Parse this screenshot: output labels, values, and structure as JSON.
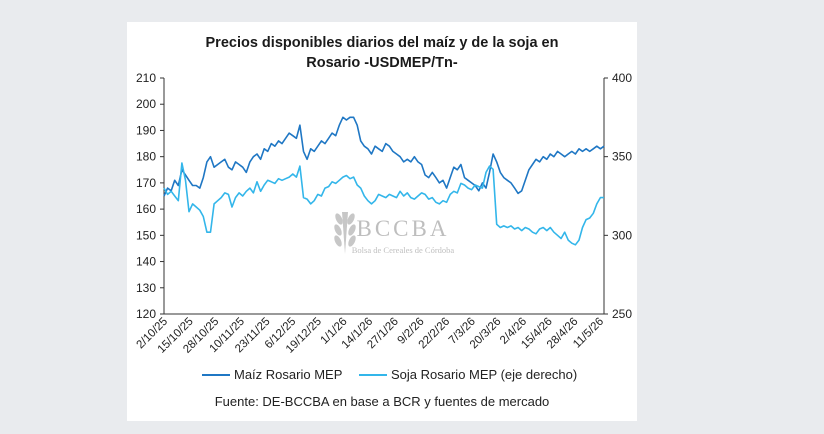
{
  "chart_data": {
    "type": "line",
    "title_line1": "Precios disponibles diarios del maíz y de la soja en",
    "title_line2": "Rosario -USDMEP/Tn-",
    "x_tick_labels": [
      "2/10/25",
      "15/10/25",
      "28/10/25",
      "10/11/25",
      "23/11/25",
      "6/12/25",
      "19/12/25",
      "1/1/26",
      "14/1/26",
      "27/1/26",
      "9/2/26",
      "22/2/26",
      "7/3/26",
      "20/3/26",
      "2/4/26",
      "15/4/26",
      "28/4/26",
      "11/5/26"
    ],
    "y_left": {
      "ylim": [
        120,
        210
      ],
      "ticks": [
        120,
        130,
        140,
        150,
        160,
        170,
        180,
        190,
        200,
        210
      ]
    },
    "y_right": {
      "ylim": [
        250,
        400
      ],
      "ticks": [
        250,
        300,
        350,
        400
      ]
    },
    "watermark": {
      "brand": "BCCBA",
      "subtitle": "Bolsa de Cereales de Córdoba"
    },
    "series": [
      {
        "name": "Maíz Rosario MEP",
        "axis": "left",
        "color": "#1f77c4",
        "points": [
          [
            0,
            165
          ],
          [
            1,
            168
          ],
          [
            2,
            167
          ],
          [
            3,
            171
          ],
          [
            4,
            169
          ],
          [
            5,
            175
          ],
          [
            6,
            173
          ],
          [
            7,
            171
          ],
          [
            8,
            169
          ],
          [
            9,
            169
          ],
          [
            10,
            168
          ],
          [
            11,
            172
          ],
          [
            12,
            178
          ],
          [
            13,
            180
          ],
          [
            14,
            176
          ],
          [
            15,
            177
          ],
          [
            16,
            178
          ],
          [
            17,
            179
          ],
          [
            18,
            176
          ],
          [
            19,
            175
          ],
          [
            20,
            178
          ],
          [
            21,
            177
          ],
          [
            22,
            176
          ],
          [
            23,
            174
          ],
          [
            24,
            178
          ],
          [
            25,
            180
          ],
          [
            26,
            181
          ],
          [
            27,
            179
          ],
          [
            28,
            183
          ],
          [
            29,
            182
          ],
          [
            30,
            185
          ],
          [
            31,
            184
          ],
          [
            32,
            186
          ],
          [
            33,
            185
          ],
          [
            34,
            187
          ],
          [
            35,
            189
          ],
          [
            36,
            188
          ],
          [
            37,
            187
          ],
          [
            38,
            192
          ],
          [
            39,
            182
          ],
          [
            40,
            179
          ],
          [
            41,
            183
          ],
          [
            42,
            182
          ],
          [
            43,
            184
          ],
          [
            44,
            186
          ],
          [
            45,
            185
          ],
          [
            46,
            187
          ],
          [
            47,
            189
          ],
          [
            48,
            188
          ],
          [
            49,
            192
          ],
          [
            50,
            195
          ],
          [
            51,
            194
          ],
          [
            52,
            195
          ],
          [
            53,
            195
          ],
          [
            54,
            192
          ],
          [
            55,
            186
          ],
          [
            56,
            184
          ],
          [
            57,
            183
          ],
          [
            58,
            181
          ],
          [
            59,
            184
          ],
          [
            60,
            183
          ],
          [
            61,
            182
          ],
          [
            62,
            185
          ],
          [
            63,
            184
          ],
          [
            64,
            182
          ],
          [
            65,
            181
          ],
          [
            66,
            180
          ],
          [
            67,
            178
          ],
          [
            68,
            179
          ],
          [
            69,
            178
          ],
          [
            70,
            180
          ],
          [
            71,
            178
          ],
          [
            72,
            177
          ],
          [
            73,
            173
          ],
          [
            74,
            172
          ],
          [
            75,
            174
          ],
          [
            76,
            172
          ],
          [
            77,
            170
          ],
          [
            78,
            171
          ],
          [
            79,
            168
          ],
          [
            80,
            172
          ],
          [
            81,
            176
          ],
          [
            82,
            175
          ],
          [
            83,
            177
          ],
          [
            84,
            172
          ],
          [
            85,
            171
          ],
          [
            86,
            170
          ],
          [
            87,
            169
          ],
          [
            88,
            167
          ],
          [
            89,
            170
          ],
          [
            90,
            168
          ],
          [
            91,
            174
          ],
          [
            92,
            181
          ],
          [
            93,
            178
          ],
          [
            94,
            174
          ],
          [
            95,
            172
          ],
          [
            96,
            171
          ],
          [
            97,
            170
          ],
          [
            98,
            168
          ],
          [
            99,
            166
          ],
          [
            100,
            167
          ],
          [
            101,
            171
          ],
          [
            102,
            175
          ],
          [
            103,
            177
          ],
          [
            104,
            179
          ],
          [
            105,
            178
          ],
          [
            106,
            180
          ],
          [
            107,
            179
          ],
          [
            108,
            181
          ],
          [
            109,
            180
          ],
          [
            110,
            182
          ],
          [
            111,
            181
          ],
          [
            112,
            180
          ],
          [
            113,
            181
          ],
          [
            114,
            182
          ],
          [
            115,
            181
          ],
          [
            116,
            183
          ],
          [
            117,
            182
          ],
          [
            118,
            183
          ],
          [
            119,
            182
          ],
          [
            120,
            183
          ],
          [
            121,
            184
          ],
          [
            122,
            183
          ],
          [
            123,
            184
          ]
        ]
      },
      {
        "name": "Soja Rosario MEP (eje derecho)",
        "axis": "right",
        "color": "#33b6ea",
        "points": [
          [
            0,
            330
          ],
          [
            1,
            326
          ],
          [
            2,
            328
          ],
          [
            3,
            325
          ],
          [
            4,
            322
          ],
          [
            5,
            346
          ],
          [
            6,
            335
          ],
          [
            7,
            315
          ],
          [
            8,
            320
          ],
          [
            9,
            318
          ],
          [
            10,
            316
          ],
          [
            11,
            312
          ],
          [
            12,
            302
          ],
          [
            13,
            302
          ],
          [
            14,
            320
          ],
          [
            15,
            322
          ],
          [
            16,
            324
          ],
          [
            17,
            327
          ],
          [
            18,
            326
          ],
          [
            19,
            318
          ],
          [
            20,
            324
          ],
          [
            21,
            327
          ],
          [
            22,
            325
          ],
          [
            23,
            328
          ],
          [
            24,
            330
          ],
          [
            25,
            327
          ],
          [
            26,
            334
          ],
          [
            27,
            328
          ],
          [
            28,
            332
          ],
          [
            29,
            335
          ],
          [
            30,
            334
          ],
          [
            31,
            333
          ],
          [
            32,
            336
          ],
          [
            33,
            335
          ],
          [
            34,
            336
          ],
          [
            35,
            337
          ],
          [
            36,
            339
          ],
          [
            37,
            337
          ],
          [
            38,
            344
          ],
          [
            39,
            324
          ],
          [
            40,
            323
          ],
          [
            41,
            320
          ],
          [
            42,
            322
          ],
          [
            43,
            326
          ],
          [
            44,
            325
          ],
          [
            45,
            330
          ],
          [
            46,
            331
          ],
          [
            47,
            334
          ],
          [
            48,
            333
          ],
          [
            49,
            335
          ],
          [
            50,
            337
          ],
          [
            51,
            338
          ],
          [
            52,
            336
          ],
          [
            53,
            337
          ],
          [
            54,
            332
          ],
          [
            55,
            330
          ],
          [
            56,
            325
          ],
          [
            57,
            322
          ],
          [
            58,
            320
          ],
          [
            59,
            322
          ],
          [
            60,
            326
          ],
          [
            61,
            325
          ],
          [
            62,
            324
          ],
          [
            63,
            326
          ],
          [
            64,
            325
          ],
          [
            65,
            324
          ],
          [
            66,
            328
          ],
          [
            67,
            325
          ],
          [
            68,
            327
          ],
          [
            69,
            324
          ],
          [
            70,
            323
          ],
          [
            71,
            325
          ],
          [
            72,
            327
          ],
          [
            73,
            326
          ],
          [
            74,
            323
          ],
          [
            75,
            324
          ],
          [
            76,
            321
          ],
          [
            77,
            320
          ],
          [
            78,
            322
          ],
          [
            79,
            321
          ],
          [
            80,
            326
          ],
          [
            81,
            328
          ],
          [
            82,
            327
          ],
          [
            83,
            333
          ],
          [
            84,
            332
          ],
          [
            85,
            330
          ],
          [
            86,
            329
          ],
          [
            87,
            332
          ],
          [
            88,
            331
          ],
          [
            89,
            330
          ],
          [
            90,
            340
          ],
          [
            91,
            344
          ],
          [
            92,
            342
          ],
          [
            93,
            307
          ],
          [
            94,
            305
          ],
          [
            95,
            306
          ],
          [
            96,
            305
          ],
          [
            97,
            306
          ],
          [
            98,
            304
          ],
          [
            99,
            305
          ],
          [
            100,
            303
          ],
          [
            101,
            305
          ],
          [
            102,
            304
          ],
          [
            103,
            302
          ],
          [
            104,
            301
          ],
          [
            105,
            304
          ],
          [
            106,
            305
          ],
          [
            107,
            303
          ],
          [
            108,
            305
          ],
          [
            109,
            302
          ],
          [
            110,
            300
          ],
          [
            111,
            298
          ],
          [
            112,
            302
          ],
          [
            113,
            297
          ],
          [
            114,
            295
          ],
          [
            115,
            294
          ],
          [
            116,
            297
          ],
          [
            117,
            305
          ],
          [
            118,
            310
          ],
          [
            119,
            311
          ],
          [
            120,
            314
          ],
          [
            121,
            320
          ],
          [
            122,
            324
          ],
          [
            123,
            324
          ]
        ]
      }
    ],
    "source": "Fuente: DE-BCCBA en base a BCR y fuentes de mercado",
    "grid": false,
    "legend_placement": "bottom"
  }
}
